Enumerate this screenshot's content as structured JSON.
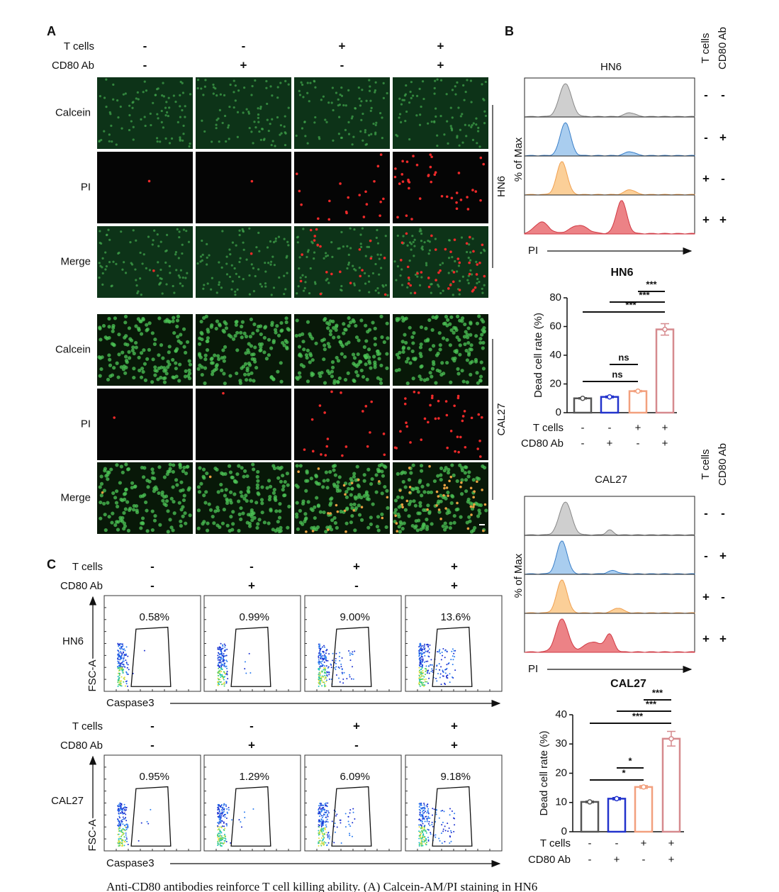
{
  "panel_a": {
    "label": "A",
    "conditions": [
      {
        "name": "T cells",
        "signs": [
          "-",
          "-",
          "+",
          "+"
        ]
      },
      {
        "name": "CD80 Ab",
        "signs": [
          "-",
          "+",
          "-",
          "+"
        ]
      }
    ],
    "groups": [
      {
        "name": "HN6",
        "rows": [
          "Calcein",
          "PI",
          "Merge"
        ]
      },
      {
        "name": "CAL27",
        "rows": [
          "Calcein",
          "PI",
          "Merge"
        ]
      }
    ]
  },
  "panel_b": {
    "label": "B",
    "groups": [
      {
        "histogram": {
          "title": "HN6",
          "condition_names": [
            "T cells",
            "CD80 Ab"
          ],
          "rows": [
            [
              "-",
              "-"
            ],
            [
              "-",
              "+"
            ],
            [
              "+",
              "-"
            ],
            [
              "+",
              "+"
            ]
          ],
          "ylabel": "% of Max",
          "xlabel": "PI"
        },
        "chart": {
          "type": "bar",
          "title": "HN6",
          "ylabel": "Dead cell rate (%)",
          "conditions": [
            {
              "name": "T cells",
              "signs": [
                "-",
                "-",
                "+",
                "+"
              ]
            },
            {
              "name": "CD80 Ab",
              "signs": [
                "-",
                "+",
                "-",
                "+"
              ]
            }
          ],
          "values": [
            10,
            11,
            15,
            58
          ],
          "errors": [
            0.5,
            0.6,
            0.5,
            4
          ],
          "colors": [
            "#555555",
            "#2233cc",
            "#f2a07e",
            "#d68a8e"
          ],
          "ylim": [
            0,
            80
          ],
          "yticks": [
            0,
            20,
            40,
            60,
            80
          ],
          "significance": [
            "***",
            "***",
            "***",
            "ns",
            "ns"
          ]
        }
      },
      {
        "histogram": {
          "title": "CAL27",
          "condition_names": [
            "T cells",
            "CD80 Ab"
          ],
          "rows": [
            [
              "-",
              "-"
            ],
            [
              "-",
              "+"
            ],
            [
              "+",
              "-"
            ],
            [
              "+",
              "+"
            ]
          ],
          "ylabel": "% of Max",
          "xlabel": "PI"
        },
        "chart": {
          "type": "bar",
          "title": "CAL27",
          "ylabel": "Dead cell rate (%)",
          "conditions": [
            {
              "name": "T cells",
              "signs": [
                "-",
                "-",
                "+",
                "+"
              ]
            },
            {
              "name": "CD80 Ab",
              "signs": [
                "-",
                "+",
                "-",
                "+"
              ]
            }
          ],
          "values": [
            10.2,
            11.3,
            15.3,
            31.8
          ],
          "errors": [
            0.3,
            0.4,
            0.5,
            2.5
          ],
          "colors": [
            "#555555",
            "#2233cc",
            "#f2a07e",
            "#d68a8e"
          ],
          "ylim": [
            0,
            40
          ],
          "yticks": [
            0,
            10,
            20,
            30,
            40
          ],
          "significance": [
            "***",
            "***",
            "***",
            "*",
            "*"
          ]
        }
      }
    ]
  },
  "panel_c": {
    "label": "C",
    "xlabel": "Caspase3",
    "ylabel": "FSC-A",
    "groups": [
      {
        "name": "HN6",
        "conditions": [
          {
            "name": "T cells",
            "signs": [
              "-",
              "-",
              "+",
              "+"
            ]
          },
          {
            "name": "CD80 Ab",
            "signs": [
              "-",
              "+",
              "-",
              "+"
            ]
          }
        ],
        "percents": [
          "0.58%",
          "0.99%",
          "9.00%",
          "13.6%"
        ]
      },
      {
        "name": "CAL27",
        "conditions": [
          {
            "name": "T cells",
            "signs": [
              "-",
              "-",
              "+",
              "+"
            ]
          },
          {
            "name": "CD80 Ab",
            "signs": [
              "-",
              "+",
              "-",
              "+"
            ]
          }
        ],
        "percents": [
          "0.95%",
          "1.29%",
          "6.09%",
          "9.18%"
        ]
      }
    ]
  },
  "caption": "Anti-CD80 antibodies reinforce T cell killing ability. (A) Calcein-AM/PI staining in HN6"
}
